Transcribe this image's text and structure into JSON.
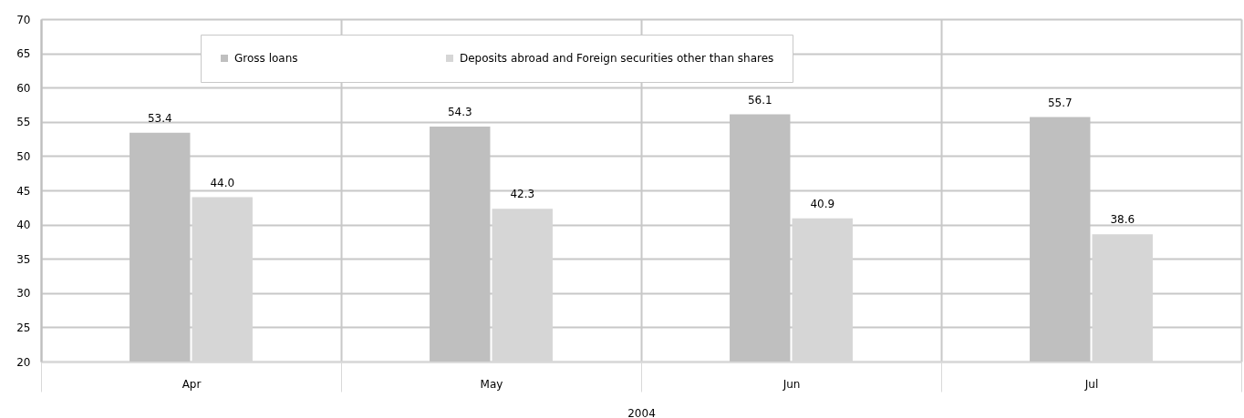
{
  "chart_data": {
    "type": "bar",
    "xlabel": "2004",
    "categories": [
      "Apr",
      "May",
      "Jun",
      "Jul"
    ],
    "series": [
      {
        "name": "Gross loans",
        "color": "#bfbfbf",
        "values": [
          53.4,
          54.3,
          56.1,
          55.7
        ],
        "value_labels": [
          "53.4",
          "54.3",
          "56.1",
          "55.7"
        ]
      },
      {
        "name": "Deposits abroad and Foreign securities other than shares",
        "color": "#d6d6d6",
        "values": [
          44.0,
          42.3,
          40.9,
          38.6
        ],
        "value_labels": [
          "44.0",
          "42.3",
          "40.9",
          "38.6"
        ]
      }
    ],
    "ylim": [
      20,
      70
    ],
    "yticks": [
      20,
      25,
      30,
      35,
      40,
      45,
      50,
      55,
      60,
      65,
      70
    ],
    "grid": true,
    "legend": "top"
  }
}
